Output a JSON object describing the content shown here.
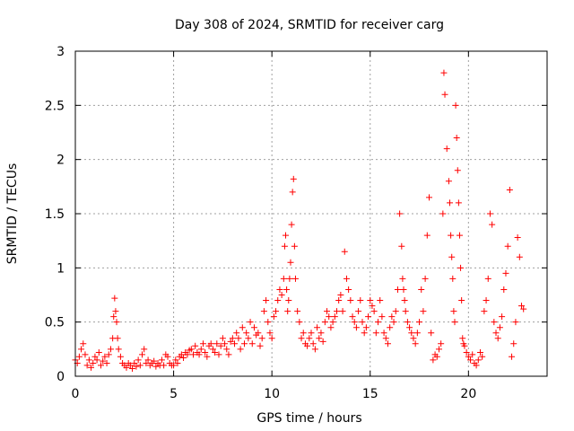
{
  "chart_data": {
    "type": "scatter",
    "title": "Day 308 of 2024, SRMTID for receiver carg",
    "xlabel": "GPS time / hours",
    "ylabel": "SRMTID / TECUs",
    "xlim": [
      0,
      24
    ],
    "ylim": [
      0,
      3
    ],
    "x_ticks": [
      0,
      5,
      10,
      15,
      20
    ],
    "x_tick_labels": [
      "0",
      "5",
      "10",
      "15",
      "20"
    ],
    "y_ticks": [
      0,
      0.5,
      1,
      1.5,
      2,
      2.5,
      3
    ],
    "y_tick_labels": [
      "0",
      "0.5",
      "1",
      "1.5",
      "2",
      "2.5",
      "3"
    ],
    "grid": true,
    "marker": "+",
    "color": "#ff0000",
    "series": [
      {
        "name": "SRMTID",
        "x": [
          0.0,
          0.1,
          0.2,
          0.3,
          0.4,
          0.5,
          0.6,
          0.7,
          0.8,
          0.9,
          1.0,
          1.1,
          1.2,
          1.3,
          1.4,
          1.5,
          1.6,
          1.7,
          1.8,
          1.9,
          1.95,
          2.0,
          2.05,
          2.1,
          2.15,
          2.2,
          2.3,
          2.4,
          2.5,
          2.6,
          2.7,
          2.8,
          2.9,
          3.0,
          3.1,
          3.2,
          3.3,
          3.4,
          3.5,
          3.6,
          3.7,
          3.8,
          3.9,
          4.0,
          4.1,
          4.2,
          4.3,
          4.4,
          4.5,
          4.6,
          4.7,
          4.8,
          4.9,
          5.0,
          5.1,
          5.2,
          5.3,
          5.4,
          5.5,
          5.6,
          5.7,
          5.8,
          5.9,
          6.0,
          6.1,
          6.2,
          6.3,
          6.4,
          6.5,
          6.6,
          6.7,
          6.8,
          6.9,
          7.0,
          7.1,
          7.2,
          7.3,
          7.4,
          7.5,
          7.6,
          7.7,
          7.8,
          7.9,
          8.0,
          8.1,
          8.2,
          8.3,
          8.4,
          8.5,
          8.6,
          8.7,
          8.8,
          8.9,
          9.0,
          9.1,
          9.2,
          9.3,
          9.4,
          9.5,
          9.6,
          9.7,
          9.8,
          9.9,
          10.0,
          10.1,
          10.2,
          10.3,
          10.4,
          10.5,
          10.6,
          10.65,
          10.7,
          10.75,
          10.8,
          10.85,
          10.9,
          10.95,
          11.0,
          11.05,
          11.1,
          11.15,
          11.2,
          11.3,
          11.4,
          11.5,
          11.6,
          11.7,
          11.8,
          11.9,
          12.0,
          12.1,
          12.2,
          12.3,
          12.4,
          12.5,
          12.6,
          12.7,
          12.8,
          12.9,
          13.0,
          13.1,
          13.2,
          13.3,
          13.4,
          13.5,
          13.6,
          13.7,
          13.8,
          13.9,
          14.0,
          14.1,
          14.2,
          14.3,
          14.4,
          14.5,
          14.6,
          14.7,
          14.8,
          14.9,
          15.0,
          15.1,
          15.2,
          15.3,
          15.4,
          15.5,
          15.6,
          15.7,
          15.8,
          15.9,
          16.0,
          16.1,
          16.2,
          16.3,
          16.4,
          16.5,
          16.6,
          16.65,
          16.7,
          16.75,
          16.8,
          16.9,
          17.0,
          17.1,
          17.2,
          17.3,
          17.4,
          17.5,
          17.6,
          17.7,
          17.8,
          17.9,
          18.0,
          18.1,
          18.2,
          18.3,
          18.4,
          18.5,
          18.6,
          18.7,
          18.75,
          18.8,
          18.9,
          19.0,
          19.05,
          19.1,
          19.15,
          19.2,
          19.25,
          19.3,
          19.35,
          19.4,
          19.45,
          19.5,
          19.55,
          19.6,
          19.65,
          19.7,
          19.75,
          19.8,
          19.9,
          20.0,
          20.1,
          20.2,
          20.3,
          20.4,
          20.5,
          20.6,
          20.7,
          20.8,
          20.9,
          21.0,
          21.1,
          21.2,
          21.3,
          21.4,
          21.5,
          21.6,
          21.7,
          21.8,
          21.9,
          22.0,
          22.1,
          22.2,
          22.3,
          22.4,
          22.5,
          22.6,
          22.7,
          22.8
        ],
        "y": [
          0.15,
          0.12,
          0.18,
          0.25,
          0.3,
          0.2,
          0.1,
          0.15,
          0.08,
          0.12,
          0.18,
          0.15,
          0.22,
          0.1,
          0.14,
          0.18,
          0.12,
          0.2,
          0.25,
          0.35,
          0.55,
          0.72,
          0.6,
          0.5,
          0.35,
          0.25,
          0.18,
          0.12,
          0.1,
          0.08,
          0.12,
          0.1,
          0.07,
          0.12,
          0.09,
          0.15,
          0.1,
          0.2,
          0.25,
          0.12,
          0.15,
          0.1,
          0.12,
          0.14,
          0.09,
          0.12,
          0.1,
          0.15,
          0.1,
          0.2,
          0.18,
          0.12,
          0.1,
          0.1,
          0.15,
          0.12,
          0.18,
          0.2,
          0.17,
          0.22,
          0.2,
          0.24,
          0.25,
          0.2,
          0.28,
          0.22,
          0.2,
          0.25,
          0.3,
          0.22,
          0.18,
          0.28,
          0.3,
          0.25,
          0.22,
          0.3,
          0.2,
          0.28,
          0.35,
          0.3,
          0.25,
          0.2,
          0.32,
          0.35,
          0.3,
          0.4,
          0.35,
          0.25,
          0.45,
          0.3,
          0.4,
          0.35,
          0.5,
          0.3,
          0.45,
          0.38,
          0.4,
          0.28,
          0.35,
          0.6,
          0.7,
          0.5,
          0.4,
          0.35,
          0.55,
          0.6,
          0.7,
          0.8,
          0.75,
          0.9,
          1.2,
          1.3,
          0.8,
          0.6,
          0.7,
          0.9,
          1.05,
          1.4,
          1.7,
          1.82,
          1.2,
          0.9,
          0.6,
          0.5,
          0.35,
          0.4,
          0.3,
          0.28,
          0.35,
          0.4,
          0.3,
          0.25,
          0.45,
          0.35,
          0.4,
          0.32,
          0.5,
          0.6,
          0.55,
          0.45,
          0.5,
          0.55,
          0.6,
          0.7,
          0.75,
          0.6,
          1.15,
          0.9,
          0.8,
          0.7,
          0.55,
          0.5,
          0.45,
          0.6,
          0.7,
          0.5,
          0.4,
          0.45,
          0.55,
          0.7,
          0.65,
          0.6,
          0.4,
          0.5,
          0.7,
          0.55,
          0.4,
          0.35,
          0.3,
          0.45,
          0.55,
          0.5,
          0.6,
          0.8,
          1.5,
          1.2,
          0.9,
          0.8,
          0.7,
          0.6,
          0.5,
          0.45,
          0.4,
          0.35,
          0.3,
          0.4,
          0.5,
          0.8,
          0.6,
          0.9,
          1.3,
          1.65,
          0.4,
          0.15,
          0.2,
          0.18,
          0.25,
          0.3,
          1.5,
          2.8,
          2.6,
          2.1,
          1.8,
          1.6,
          1.3,
          1.1,
          0.9,
          0.6,
          0.5,
          2.5,
          2.2,
          1.9,
          1.6,
          1.3,
          1.0,
          0.7,
          0.35,
          0.3,
          0.28,
          0.22,
          0.18,
          0.15,
          0.2,
          0.12,
          0.1,
          0.15,
          0.22,
          0.18,
          0.6,
          0.7,
          0.9,
          1.5,
          1.4,
          0.5,
          0.4,
          0.35,
          0.45,
          0.55,
          0.8,
          0.95,
          1.2,
          1.72,
          0.18,
          0.3,
          0.5,
          1.28,
          1.1,
          0.65,
          0.62
        ]
      }
    ]
  }
}
